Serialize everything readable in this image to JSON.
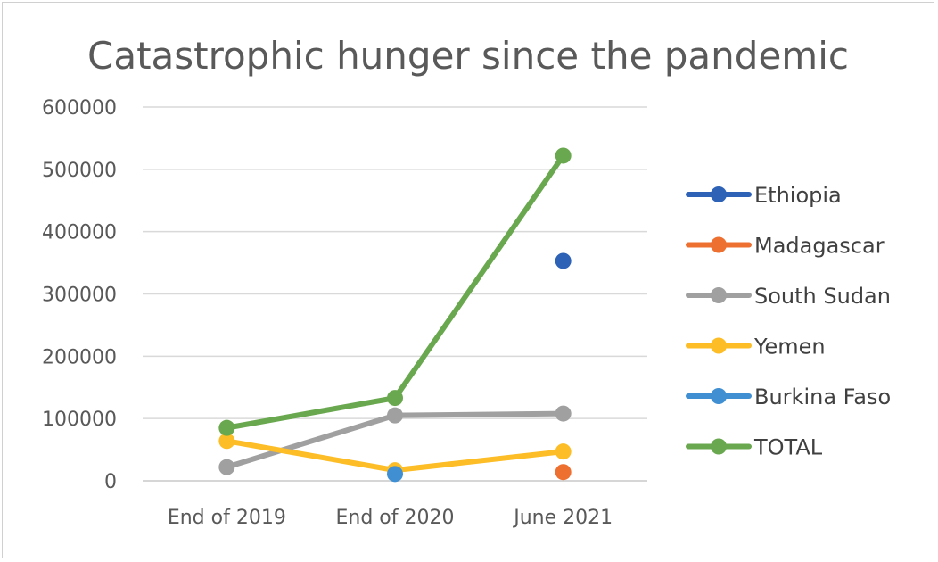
{
  "chart_data": {
    "type": "line",
    "title": "Catastrophic hunger since the pandemic",
    "categories": [
      "End of 2019",
      "End of 2020",
      "June 2021"
    ],
    "ylim": [
      0,
      600000
    ],
    "yticks": [
      "0",
      "100000",
      "200000",
      "300000",
      "400000",
      "500000",
      "600000"
    ],
    "grid": true,
    "legend_position": "right",
    "series": [
      {
        "name": "Ethiopia",
        "color": "#2e62b6",
        "values": [
          null,
          null,
          353000
        ]
      },
      {
        "name": "Madagascar",
        "color": "#ed7031",
        "values": [
          null,
          null,
          14000
        ]
      },
      {
        "name": "South Sudan",
        "color": "#a0a0a0",
        "values": [
          22000,
          105000,
          108000
        ]
      },
      {
        "name": "Yemen",
        "color": "#fcbd26",
        "values": [
          64000,
          17000,
          47000
        ]
      },
      {
        "name": "Burkina Faso",
        "color": "#3f8fd2",
        "values": [
          null,
          11000,
          null
        ]
      },
      {
        "name": "TOTAL",
        "color": "#6aa84f",
        "values": [
          85000,
          133000,
          522000
        ]
      }
    ]
  }
}
